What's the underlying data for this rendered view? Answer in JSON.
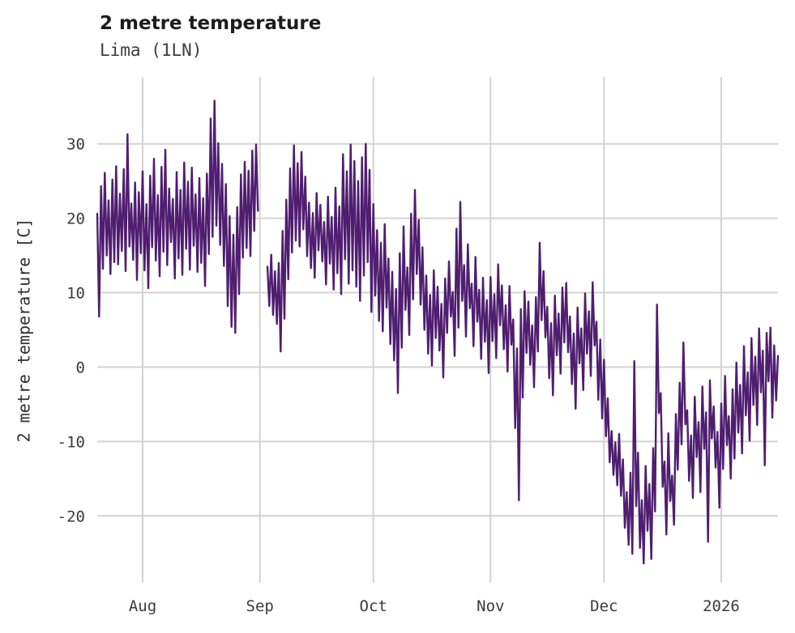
{
  "page": {
    "background": "#ffffff"
  },
  "chart_data": {
    "type": "line",
    "title": "2 metre temperature",
    "subtitle": "Lima (1LN)",
    "ylabel": "2 metre temperature [C]",
    "xlabel": "",
    "legend": null,
    "grid": true,
    "line_color": "#4f1e70",
    "grid_color": "#d3d3d3",
    "background_color": "#ffffff",
    "ylim": [
      -29,
      39
    ],
    "xlim": [
      0,
      180
    ],
    "x_unit": "days",
    "dt_days": 0.5,
    "y_ticks": [
      -20,
      -10,
      0,
      10,
      20,
      30
    ],
    "x_ticks": [
      {
        "pos": 12,
        "label": "Aug"
      },
      {
        "pos": 43,
        "label": "Sep"
      },
      {
        "pos": 73,
        "label": "Oct"
      },
      {
        "pos": 104,
        "label": "Nov"
      },
      {
        "pos": 134,
        "label": "Dec"
      },
      {
        "pos": 165,
        "label": "2026"
      }
    ],
    "values": [
      20.6,
      6.8,
      24.3,
      13.2,
      26.1,
      15.0,
      22.4,
      12.5,
      25.2,
      14.1,
      27.0,
      13.8,
      23.3,
      15.6,
      26.6,
      12.9,
      31.3,
      16.2,
      22.0,
      14.4,
      24.8,
      11.7,
      23.5,
      15.3,
      26.3,
      13.0,
      21.9,
      10.6,
      25.7,
      16.1,
      28.0,
      14.3,
      23.1,
      12.2,
      26.9,
      15.5,
      29.2,
      13.7,
      24.0,
      16.8,
      22.6,
      11.9,
      26.2,
      14.6,
      23.8,
      12.4,
      27.5,
      15.9,
      24.9,
      13.1,
      26.8,
      16.3,
      23.2,
      12.8,
      25.4,
      14.0,
      22.7,
      10.9,
      26.0,
      15.2,
      33.4,
      17.5,
      35.8,
      19.0,
      30.1,
      16.4,
      27.3,
      13.6,
      24.6,
      8.2,
      20.3,
      5.4,
      17.8,
      4.6,
      21.5,
      9.8,
      25.9,
      14.7,
      27.6,
      16.0,
      26.4,
      14.9,
      29.1,
      18.3,
      29.9,
      21.0,
      null,
      null,
      null,
      null,
      13.5,
      8.2,
      15.1,
      7.0,
      12.9,
      5.8,
      14.0,
      2.1,
      18.3,
      6.5,
      22.5,
      11.8,
      26.7,
      15.4,
      29.8,
      17.0,
      27.4,
      16.2,
      28.9,
      18.5,
      25.6,
      14.9,
      22.1,
      13.3,
      20.7,
      12.0,
      23.4,
      15.7,
      21.8,
      14.2,
      19.5,
      11.1,
      22.9,
      13.9,
      20.2,
      10.4,
      24.1,
      12.6,
      21.6,
      9.8,
      28.6,
      14.5,
      26.3,
      11.2,
      29.9,
      13.0,
      27.7,
      10.8,
      25.0,
      8.9,
      28.2,
      12.3,
      30.0,
      14.1,
      26.5,
      7.4,
      21.9,
      9.6,
      18.4,
      6.2,
      16.7,
      4.8,
      19.2,
      8.0,
      14.6,
      3.1,
      12.8,
      0.9,
      10.5,
      -3.5,
      15.3,
      2.6,
      18.9,
      7.7,
      13.4,
      4.3,
      20.6,
      9.1,
      23.8,
      12.5,
      19.8,
      8.4,
      16.1,
      5.0,
      12.3,
      1.8,
      9.7,
      0.2,
      13.0,
      3.9,
      10.8,
      2.2,
      8.5,
      -1.4,
      11.9,
      4.6,
      14.2,
      6.8,
      10.1,
      1.5,
      18.6,
      5.3,
      22.2,
      8.9,
      13.7,
      4.1,
      16.5,
      7.9,
      11.2,
      2.8,
      14.8,
      6.1,
      10.4,
      1.1,
      12.0,
      3.4,
      9.0,
      -0.8,
      12.1,
      3.5,
      9.8,
      1.2,
      13.8,
      5.6,
      11.0,
      2.4,
      8.3,
      -0.6,
      10.9,
      3.0,
      6.4,
      -8.2,
      2.5,
      -17.9,
      7.8,
      -4.1,
      10.2,
      1.9,
      8.8,
      0.3,
      5.6,
      -2.7,
      9.4,
      2.1,
      16.7,
      6.3,
      12.9,
      4.0,
      8.1,
      -1.5,
      5.9,
      -3.8,
      9.6,
      1.6,
      7.2,
      -0.9,
      10.7,
      3.3,
      11.3,
      2.0,
      6.8,
      -2.3,
      4.5,
      -5.6,
      8.0,
      0.5,
      5.2,
      -3.1,
      9.9,
      1.8,
      7.5,
      -1.2,
      11.4,
      2.9,
      6.1,
      -4.4,
      3.7,
      -6.9,
      1.0,
      -9.3,
      -4.2,
      -12.8,
      -8.6,
      -14.5,
      -10.1,
      -15.9,
      -9.0,
      -17.3,
      -12.4,
      -21.6,
      -16.8,
      -23.9,
      -14.2,
      -25.1,
      0.8,
      -18.7,
      -11.5,
      -24.3,
      -17.9,
      -26.4,
      -13.3,
      -22.0,
      -15.7,
      -25.8,
      -10.9,
      -19.4,
      8.4,
      -6.2,
      -3.5,
      -16.1,
      -12.7,
      -22.5,
      -8.9,
      -18.0,
      -14.6,
      -21.2,
      -6.3,
      -13.8,
      -2.1,
      -10.4,
      3.3,
      -7.7,
      -5.8,
      -15.3,
      -9.2,
      -17.6,
      -4.0,
      -12.1,
      -7.4,
      -16.8,
      -2.6,
      -11.0,
      -6.1,
      -23.5,
      -1.8,
      -9.6,
      -5.3,
      -13.5,
      -8.7,
      -18.9,
      -4.9,
      -13.7,
      -1.2,
      -10.5,
      -6.6,
      -15.0,
      -3.0,
      -12.3,
      0.6,
      -8.8,
      -2.4,
      -11.6,
      2.8,
      -6.5,
      -0.7,
      -9.9,
      3.9,
      -5.1,
      1.4,
      -7.8,
      5.2,
      -3.4,
      2.2,
      -13.2,
      4.6,
      -1.9,
      5.3,
      -6.8,
      2.9,
      -4.5,
      1.5
    ]
  }
}
